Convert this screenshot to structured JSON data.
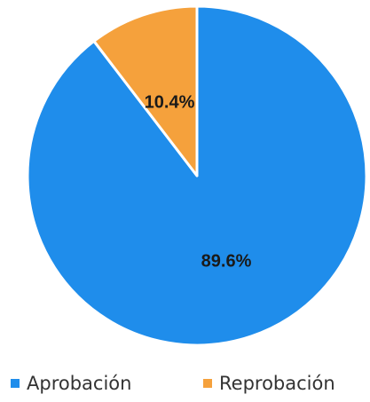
{
  "chart_data": {
    "type": "pie",
    "title": "",
    "slices": [
      {
        "label": "Aprobación",
        "value": 89.6,
        "value_label": "89.6%",
        "color": "#1F8DEB"
      },
      {
        "label": "Reprobación",
        "value": 10.4,
        "value_label": "10.4%",
        "color": "#F5A13C"
      }
    ],
    "start": "12 o'clock, clockwise",
    "legend": "bottom"
  }
}
